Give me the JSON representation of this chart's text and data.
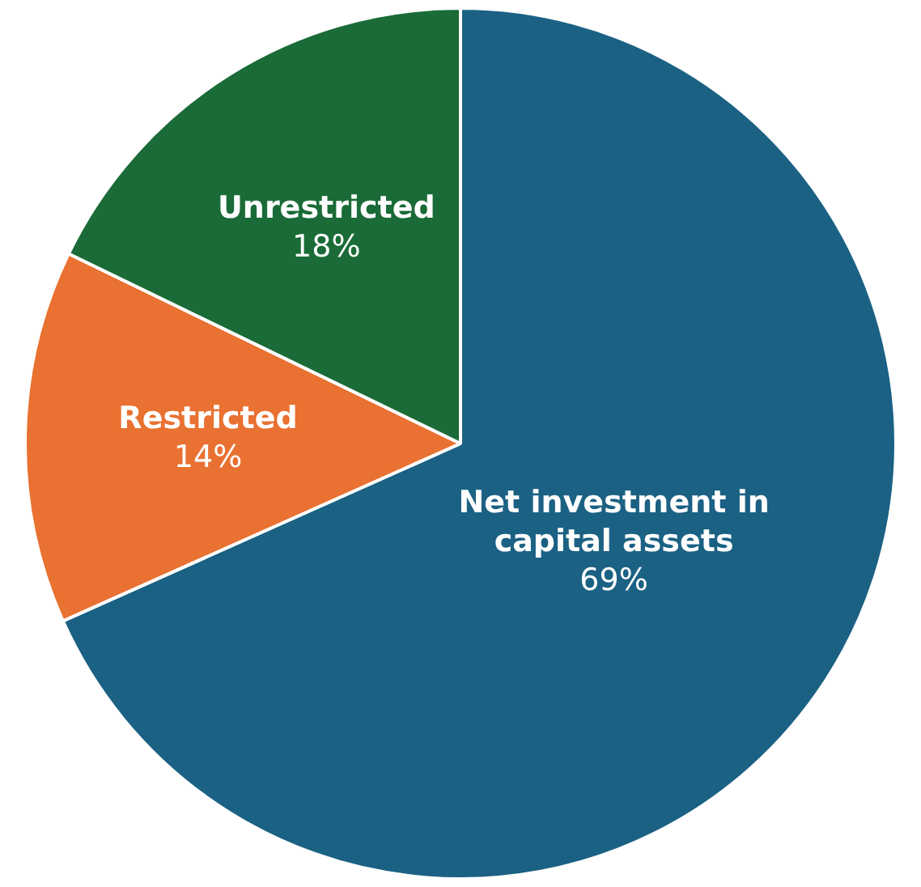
{
  "chart_data": {
    "type": "pie",
    "categories": [
      "Net investment in capital assets",
      "Restricted",
      "Unrestricted"
    ],
    "values": [
      69,
      14,
      18
    ],
    "colors": [
      "#1b6183",
      "#e97131",
      "#1a6b37"
    ],
    "value_labels": [
      "69%",
      "14%",
      "18%"
    ],
    "legend": false
  }
}
